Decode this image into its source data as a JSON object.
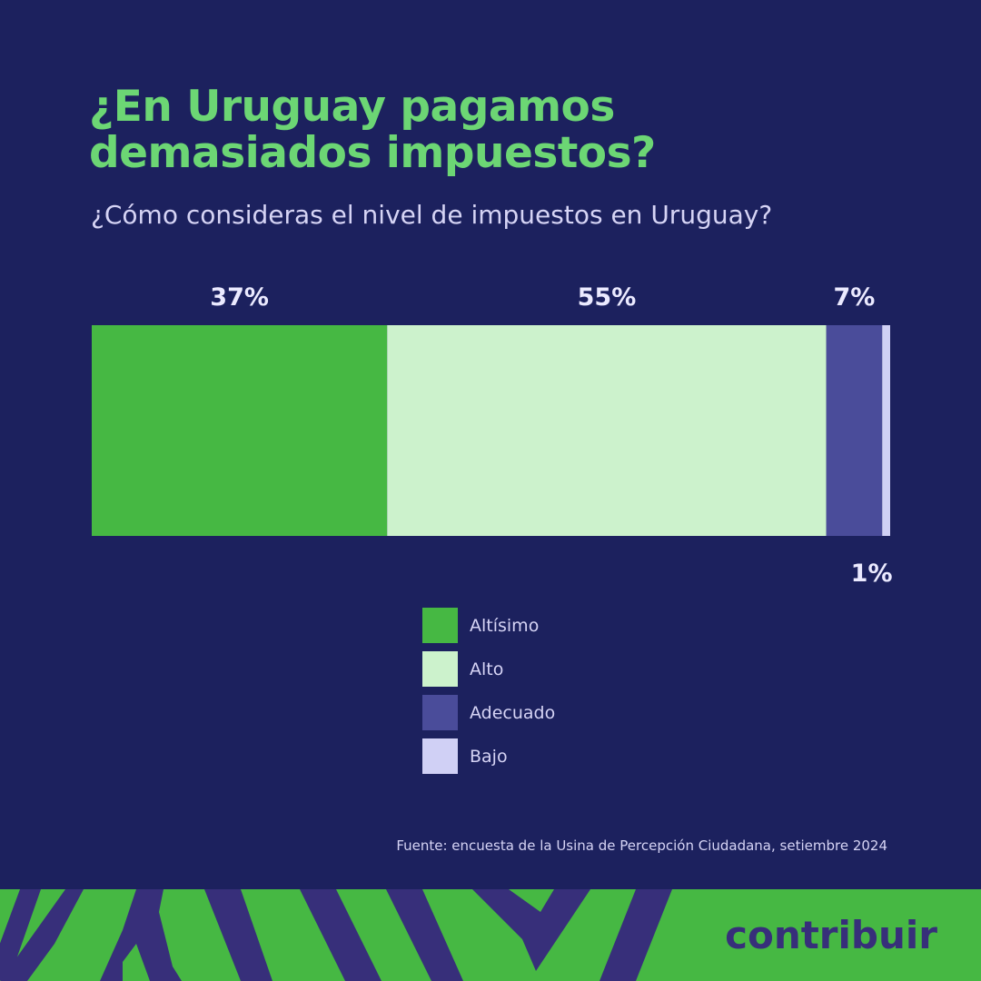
{
  "title_line1": "¿En Uruguay pagamos",
  "title_line2": "demasiados impuestos?",
  "subtitle": "¿Cómo consideras el nivel de impuestos en Uruguay?",
  "chart_data": {
    "type": "bar",
    "orientation": "horizontal-stacked",
    "xlim": [
      0,
      100
    ],
    "categories": [
      "Altísimo",
      "Alto",
      "Adecuado",
      "Bajo"
    ],
    "values": [
      37,
      55,
      7,
      1
    ],
    "labels": [
      "37%",
      "55%",
      "7%",
      "1%"
    ],
    "colors": [
      "#46b843",
      "#ccf2cc",
      "#4a4c9a",
      "#d0d0f5"
    ],
    "legend_position": "bottom",
    "grid": false
  },
  "source": "Fuente: encuesta de la Usina de Percepción Ciudadana, setiembre 2024",
  "brand": "contribuir",
  "colors": {
    "background": "#1c215e",
    "title": "#6cd674",
    "banner_green": "#46b843",
    "banner_purple": "#372f7a"
  }
}
